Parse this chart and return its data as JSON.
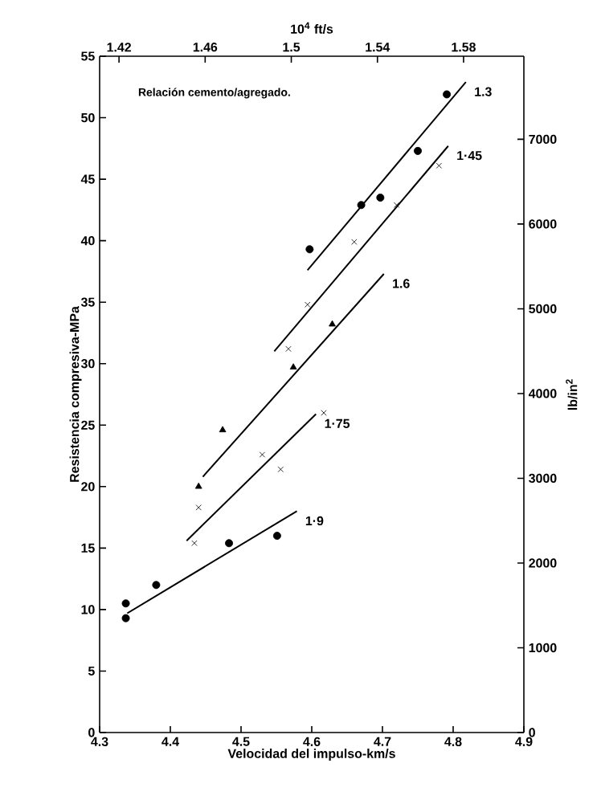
{
  "chart_data": {
    "type": "scatter",
    "xlabel": "Velocidad del impulso-km/s",
    "ylabel": "Resistencia compresiva-MPa",
    "x2label": "10$^{4}$ ft/s",
    "y2label": "lb/in$^{2}$",
    "xlim": [
      4.3,
      4.9
    ],
    "xticks": [
      4.3,
      4.4,
      4.5,
      4.6,
      4.7,
      4.8,
      4.9
    ],
    "ylim": [
      0,
      55
    ],
    "yticks": [
      0,
      5,
      10,
      15,
      20,
      25,
      30,
      35,
      40,
      45,
      50,
      55
    ],
    "x2lim": [
      1.411,
      1.608
    ],
    "x2ticks": [
      1.42,
      1.46,
      1.5,
      1.54,
      1.58
    ],
    "y2lim": [
      0,
      7980
    ],
    "y2ticks": [
      0,
      1000,
      2000,
      3000,
      4000,
      5000,
      6000,
      7000
    ],
    "annotations": [
      "Relación cemento/agregado."
    ],
    "grid": false,
    "series": [
      {
        "marker": "circle",
        "color": "#000000",
        "x": [
          4.791,
          4.75,
          4.697,
          4.67,
          4.597
        ],
        "values": [
          51.9,
          47.3,
          43.5,
          42.9,
          39.3
        ]
      },
      {
        "marker": "cross",
        "color": "#000000",
        "x": [
          4.78,
          4.72,
          4.66,
          4.594,
          4.567
        ],
        "values": [
          46.1,
          42.9,
          39.9,
          34.8,
          31.2
        ]
      },
      {
        "marker": "triangle",
        "color": "#000000",
        "x": [
          4.44,
          4.474,
          4.574,
          4.629
        ],
        "values": [
          20.0,
          24.6,
          29.7,
          33.2
        ]
      },
      {
        "marker": "cross",
        "color": "#000000",
        "x": [
          4.434,
          4.44,
          4.53,
          4.556,
          4.617
        ],
        "values": [
          15.4,
          18.3,
          22.6,
          21.4,
          26.0
        ]
      },
      {
        "marker": "circle",
        "color": "#000000",
        "x": [
          4.337,
          4.337,
          4.38,
          4.483,
          4.551
        ],
        "values": [
          10.5,
          9.3,
          12.0,
          15.4,
          16.0
        ]
      },
      {
        "type": "line",
        "name": "1.3",
        "color": "#000000",
        "x": [
          4.594,
          4.818
        ],
        "values": [
          37.6,
          52.9
        ]
      },
      {
        "type": "line",
        "name": "1·45",
        "color": "#000000",
        "x": [
          4.547,
          4.793
        ],
        "values": [
          31.0,
          47.7
        ]
      },
      {
        "type": "line",
        "name": "1.6",
        "color": "#000000",
        "x": [
          4.446,
          4.702
        ],
        "values": [
          20.8,
          37.3
        ]
      },
      {
        "type": "line",
        "name": "1·75",
        "color": "#000000",
        "x": [
          4.423,
          4.606
        ],
        "values": [
          15.6,
          25.9
        ]
      },
      {
        "type": "line",
        "name": "1·9",
        "color": "#000000",
        "x": [
          4.339,
          4.579
        ],
        "values": [
          9.7,
          18.0
        ]
      }
    ]
  }
}
